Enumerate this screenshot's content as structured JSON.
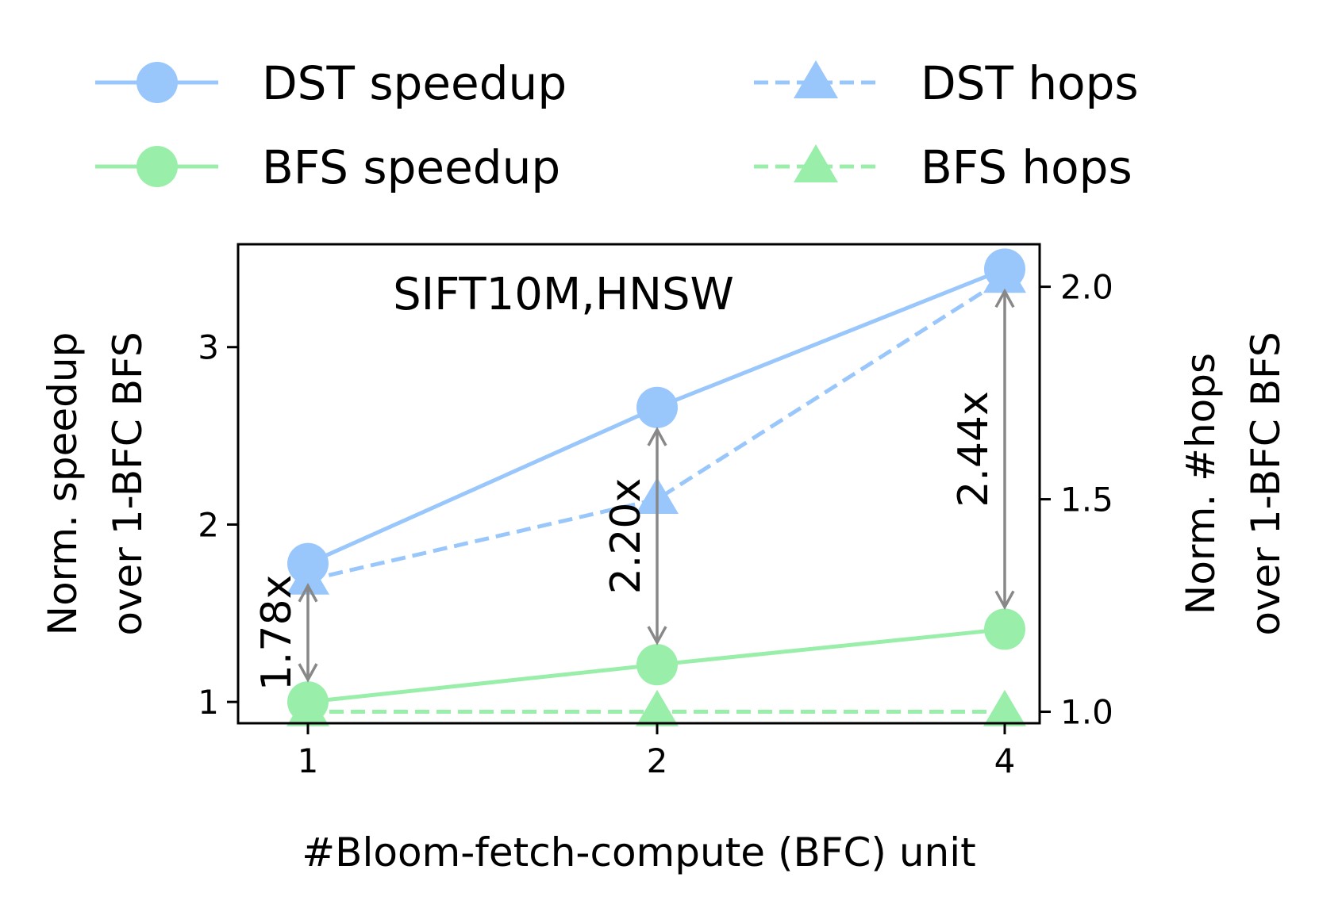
{
  "chart_data": {
    "type": "line",
    "title": "SIFT10M,HNSW",
    "xlabel": "#Bloom-fetch-compute (BFC) unit",
    "ylabel_left": [
      "Norm. speedup",
      "over 1-BFC BFS"
    ],
    "ylabel_right": [
      "Norm. #hops",
      "over 1-BFC BFS"
    ],
    "categories": [
      "1",
      "2",
      "4"
    ],
    "y_left_ticks": [
      "1",
      "2",
      "3"
    ],
    "y_right_ticks": [
      "1.0",
      "1.5",
      "2.0"
    ],
    "y_left_lim": [
      0.88,
      3.58
    ],
    "y_right_lim": [
      0.973,
      2.1
    ],
    "legend_position": "top",
    "grid": false,
    "series": [
      {
        "name": "DST speedup",
        "axis": "left",
        "style": "solid",
        "marker": "circle",
        "color": "#99c7fc",
        "values": [
          1.78,
          2.66,
          3.44
        ]
      },
      {
        "name": "BFS speedup",
        "axis": "left",
        "style": "solid",
        "marker": "circle",
        "color": "#99eeaa",
        "values": [
          1.0,
          1.21,
          1.41
        ]
      },
      {
        "name": "DST hops",
        "axis": "right",
        "style": "dashed",
        "marker": "triangle",
        "color": "#99c7fc",
        "values": [
          1.31,
          1.5,
          2.02
        ]
      },
      {
        "name": "BFS hops",
        "axis": "right",
        "style": "dashed",
        "marker": "triangle",
        "color": "#99eeaa",
        "values": [
          1.0,
          1.0,
          1.0
        ]
      }
    ],
    "annotations": [
      {
        "category": "1",
        "text": "1.78x",
        "from": 1.0,
        "to": 1.78
      },
      {
        "category": "2",
        "text": "2.20x",
        "from": 1.21,
        "to": 2.66
      },
      {
        "category": "4",
        "text": "2.44x",
        "from": 1.41,
        "to": 3.44
      }
    ],
    "annotation_color": "#888888"
  }
}
